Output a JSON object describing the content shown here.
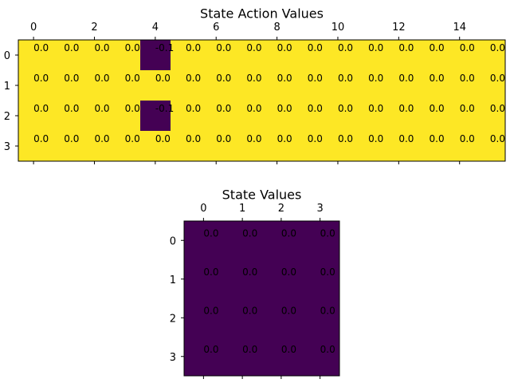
{
  "colors": {
    "low": "#440154",
    "high": "#fde725",
    "axis": "#000000",
    "background": "#ffffff"
  },
  "chart_data": [
    {
      "type": "heatmap",
      "title": "State Action Values",
      "colormap": "viridis",
      "x_tick_positions": [
        0,
        2,
        4,
        6,
        8,
        10,
        12,
        14
      ],
      "y_tick_positions": [
        0,
        1,
        2,
        3
      ],
      "x_tick_labels": [
        "0",
        "2",
        "4",
        "6",
        "8",
        "10",
        "12",
        "14"
      ],
      "y_tick_labels": [
        "0",
        "1",
        "2",
        "3"
      ],
      "xlim": [
        -0.5,
        15.5
      ],
      "ylim": [
        3.5,
        -0.5
      ],
      "x_tick_position": "top",
      "values": [
        [
          0.0,
          0.0,
          0.0,
          0.0,
          -0.1,
          0.0,
          0.0,
          0.0,
          0.0,
          0.0,
          0.0,
          0.0,
          0.0,
          0.0,
          0.0,
          0.0
        ],
        [
          0.0,
          0.0,
          0.0,
          0.0,
          0.0,
          0.0,
          0.0,
          0.0,
          0.0,
          0.0,
          0.0,
          0.0,
          0.0,
          0.0,
          0.0,
          0.0
        ],
        [
          0.0,
          0.0,
          0.0,
          0.0,
          -0.1,
          0.0,
          0.0,
          0.0,
          0.0,
          0.0,
          0.0,
          0.0,
          0.0,
          0.0,
          0.0,
          0.0
        ],
        [
          0.0,
          0.0,
          0.0,
          0.0,
          0.0,
          0.0,
          0.0,
          0.0,
          0.0,
          0.0,
          0.0,
          0.0,
          0.0,
          0.0,
          0.0,
          0.0
        ]
      ],
      "cell_labels": [
        [
          "0.0",
          "0.0",
          "0.0",
          "0.0",
          "-0.1",
          "0.0",
          "0.0",
          "0.0",
          "0.0",
          "0.0",
          "0.0",
          "0.0",
          "0.0",
          "0.0",
          "0.0",
          "0.0"
        ],
        [
          "0.0",
          "0.0",
          "0.0",
          "0.0",
          "0.0",
          "0.0",
          "0.0",
          "0.0",
          "0.0",
          "0.0",
          "0.0",
          "0.0",
          "0.0",
          "0.0",
          "0.0",
          "0.0"
        ],
        [
          "0.0",
          "0.0",
          "0.0",
          "0.0",
          "-0.1",
          "0.0",
          "0.0",
          "0.0",
          "0.0",
          "0.0",
          "0.0",
          "0.0",
          "0.0",
          "0.0",
          "0.0",
          "0.0"
        ],
        [
          "0.0",
          "0.0",
          "0.0",
          "0.0",
          "0.0",
          "0.0",
          "0.0",
          "0.0",
          "0.0",
          "0.0",
          "0.0",
          "0.0",
          "0.0",
          "0.0",
          "0.0",
          "0.0"
        ]
      ]
    },
    {
      "type": "heatmap",
      "title": "State Values",
      "colormap": "viridis",
      "x_tick_positions": [
        0,
        1,
        2,
        3
      ],
      "y_tick_positions": [
        0,
        1,
        2,
        3
      ],
      "x_tick_labels": [
        "0",
        "1",
        "2",
        "3"
      ],
      "y_tick_labels": [
        "0",
        "1",
        "2",
        "3"
      ],
      "xlim": [
        -0.5,
        3.5
      ],
      "ylim": [
        3.5,
        -0.5
      ],
      "x_tick_position": "top",
      "values": [
        [
          0.0,
          0.0,
          0.0,
          0.0
        ],
        [
          0.0,
          0.0,
          0.0,
          0.0
        ],
        [
          0.0,
          0.0,
          0.0,
          0.0
        ],
        [
          0.0,
          0.0,
          0.0,
          0.0
        ]
      ],
      "cell_labels": [
        [
          "0.0",
          "0.0",
          "0.0",
          "0.0"
        ],
        [
          "0.0",
          "0.0",
          "0.0",
          "0.0"
        ],
        [
          "0.0",
          "0.0",
          "0.0",
          "0.0"
        ],
        [
          "0.0",
          "0.0",
          "0.0",
          "0.0"
        ]
      ]
    }
  ]
}
